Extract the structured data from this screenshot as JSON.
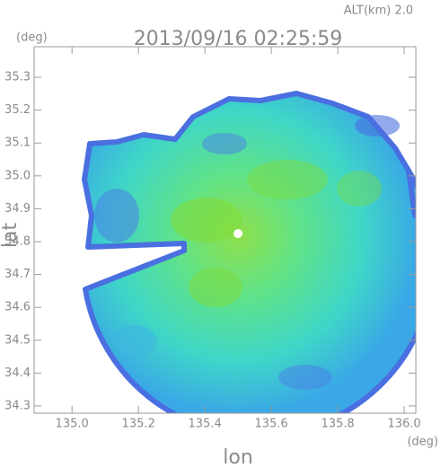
{
  "chart_data": {
    "type": "map",
    "title": "2013/09/16 02:25:59",
    "subtitle": "ALT(km) 2.0",
    "x_label": "lon",
    "y_label": "lat",
    "x_unit": "(deg)",
    "y_unit": "(deg)",
    "xlim": [
      134.886,
      136.035
    ],
    "ylim": [
      34.278,
      35.393
    ],
    "xticks": [
      {
        "value": 135,
        "label": "135.0"
      },
      135.2,
      135.4,
      135.6,
      135.8,
      {
        "value": 136,
        "label": "136.0"
      }
    ],
    "yticks": [
      34.3,
      34.4,
      34.5,
      34.6,
      34.7,
      34.8,
      34.9,
      {
        "value": 35,
        "label": "35.0"
      },
      35.1,
      35.2,
      35.3
    ]
  }
}
